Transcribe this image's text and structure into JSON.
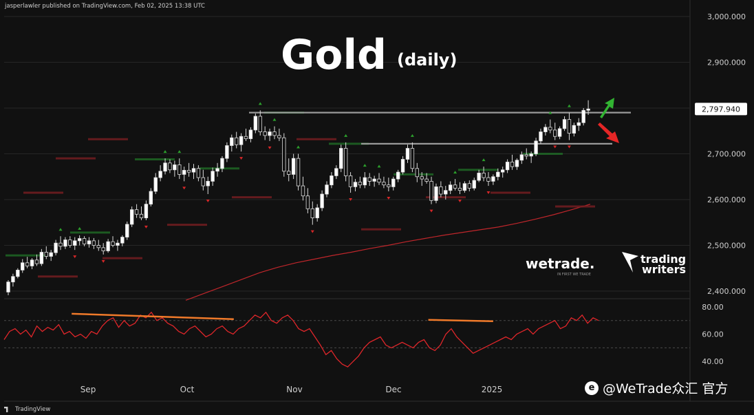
{
  "header": {
    "attribution": "jasperlawler published on TradingView.com, Feb 02, 2025 13:38 UTC"
  },
  "footer": {
    "tv_logo": "TradingView"
  },
  "watermark": {
    "icon": "weibo-icon",
    "text": "@WeTrade众汇 官方"
  },
  "logos": {
    "wetrade": "wetrade.",
    "wetrade_tagline": "IN FIRST WE TRADE",
    "trading_writers_line1": "trading",
    "trading_writers_line2": "writers"
  },
  "colors": {
    "background": "#111111",
    "up": "#ffffff",
    "down": "#ffffff",
    "level": "#9a9a9a",
    "sma": "#c0262b",
    "rsi": "#e0262a",
    "divergence": "#f07a2a",
    "arrow_up": "#32b432",
    "arrow_down": "#e52626",
    "pivot_high": "#2ca02c",
    "pivot_low": "#d62728",
    "current_price_bg": "#ffffff"
  },
  "chart_data": {
    "type": "candlestick",
    "title": "Gold",
    "subtitle": "(daily)",
    "price_axis": {
      "ticks": [
        "3,000.000",
        "2,900.000",
        "2,800.000",
        "2,700.000",
        "2,600.000",
        "2,500.000",
        "2,400.000"
      ],
      "ylim": [
        2385,
        3015
      ]
    },
    "current_price": {
      "value": 2797.94,
      "label": "2,797.940"
    },
    "x_axis": {
      "labels": [
        "Sep",
        "Oct",
        "Nov",
        "Dec",
        "2025"
      ],
      "label_positions": [
        20,
        46,
        74,
        100,
        125
      ]
    },
    "candles_ohlc": [
      [
        2398,
        2424,
        2391,
        2420
      ],
      [
        2420,
        2438,
        2410,
        2432
      ],
      [
        2432,
        2450,
        2428,
        2446
      ],
      [
        2446,
        2470,
        2440,
        2462
      ],
      [
        2462,
        2475,
        2450,
        2455
      ],
      [
        2455,
        2472,
        2448,
        2468
      ],
      [
        2468,
        2480,
        2455,
        2460
      ],
      [
        2460,
        2492,
        2455,
        2485
      ],
      [
        2485,
        2498,
        2470,
        2476
      ],
      [
        2476,
        2490,
        2466,
        2484
      ],
      [
        2484,
        2512,
        2478,
        2505
      ],
      [
        2505,
        2520,
        2490,
        2498
      ],
      [
        2498,
        2518,
        2492,
        2512
      ],
      [
        2512,
        2520,
        2495,
        2500
      ],
      [
        2500,
        2518,
        2490,
        2510
      ],
      [
        2510,
        2522,
        2500,
        2515
      ],
      [
        2515,
        2520,
        2498,
        2503
      ],
      [
        2503,
        2518,
        2495,
        2510
      ],
      [
        2510,
        2516,
        2492,
        2500
      ],
      [
        2500,
        2512,
        2488,
        2495
      ],
      [
        2495,
        2505,
        2480,
        2488
      ],
      [
        2488,
        2514,
        2484,
        2508
      ],
      [
        2508,
        2520,
        2496,
        2500
      ],
      [
        2500,
        2512,
        2488,
        2505
      ],
      [
        2505,
        2522,
        2498,
        2518
      ],
      [
        2518,
        2552,
        2512,
        2546
      ],
      [
        2546,
        2585,
        2540,
        2578
      ],
      [
        2578,
        2590,
        2560,
        2568
      ],
      [
        2568,
        2585,
        2555,
        2560
      ],
      [
        2560,
        2598,
        2555,
        2590
      ],
      [
        2590,
        2625,
        2585,
        2618
      ],
      [
        2618,
        2658,
        2612,
        2648
      ],
      [
        2648,
        2675,
        2640,
        2662
      ],
      [
        2662,
        2690,
        2655,
        2680
      ],
      [
        2680,
        2688,
        2658,
        2665
      ],
      [
        2665,
        2685,
        2650,
        2676
      ],
      [
        2676,
        2690,
        2645,
        2655
      ],
      [
        2655,
        2672,
        2640,
        2664
      ],
      [
        2664,
        2680,
        2650,
        2660
      ],
      [
        2660,
        2678,
        2645,
        2668
      ],
      [
        2668,
        2675,
        2640,
        2648
      ],
      [
        2648,
        2665,
        2620,
        2630
      ],
      [
        2630,
        2650,
        2612,
        2640
      ],
      [
        2640,
        2670,
        2630,
        2662
      ],
      [
        2662,
        2680,
        2650,
        2668
      ],
      [
        2668,
        2695,
        2660,
        2690
      ],
      [
        2690,
        2725,
        2682,
        2718
      ],
      [
        2718,
        2742,
        2705,
        2735
      ],
      [
        2735,
        2748,
        2712,
        2720
      ],
      [
        2720,
        2745,
        2705,
        2738
      ],
      [
        2738,
        2755,
        2728,
        2733
      ],
      [
        2733,
        2758,
        2725,
        2752
      ],
      [
        2752,
        2788,
        2745,
        2782
      ],
      [
        2782,
        2795,
        2740,
        2748
      ],
      [
        2748,
        2760,
        2730,
        2740
      ],
      [
        2740,
        2755,
        2728,
        2748
      ],
      [
        2748,
        2760,
        2732,
        2740
      ],
      [
        2740,
        2755,
        2728,
        2735
      ],
      [
        2735,
        2745,
        2650,
        2662
      ],
      [
        2662,
        2690,
        2640,
        2655
      ],
      [
        2655,
        2700,
        2645,
        2690
      ],
      [
        2690,
        2700,
        2620,
        2630
      ],
      [
        2630,
        2650,
        2598,
        2608
      ],
      [
        2608,
        2625,
        2570,
        2580
      ],
      [
        2580,
        2596,
        2545,
        2560
      ],
      [
        2560,
        2590,
        2552,
        2582
      ],
      [
        2582,
        2620,
        2575,
        2612
      ],
      [
        2612,
        2640,
        2605,
        2632
      ],
      [
        2632,
        2660,
        2625,
        2652
      ],
      [
        2652,
        2675,
        2645,
        2668
      ],
      [
        2668,
        2720,
        2660,
        2712
      ],
      [
        2712,
        2725,
        2640,
        2652
      ],
      [
        2652,
        2660,
        2615,
        2628
      ],
      [
        2628,
        2645,
        2618,
        2638
      ],
      [
        2638,
        2650,
        2625,
        2632
      ],
      [
        2632,
        2660,
        2625,
        2648
      ],
      [
        2648,
        2658,
        2630,
        2640
      ],
      [
        2640,
        2652,
        2628,
        2645
      ],
      [
        2645,
        2658,
        2632,
        2638
      ],
      [
        2638,
        2650,
        2625,
        2632
      ],
      [
        2632,
        2648,
        2618,
        2628
      ],
      [
        2628,
        2650,
        2620,
        2645
      ],
      [
        2645,
        2665,
        2638,
        2660
      ],
      [
        2660,
        2695,
        2655,
        2688
      ],
      [
        2688,
        2720,
        2680,
        2712
      ],
      [
        2712,
        2725,
        2660,
        2668
      ],
      [
        2668,
        2680,
        2638,
        2650
      ],
      [
        2650,
        2660,
        2630,
        2645
      ],
      [
        2645,
        2658,
        2635,
        2640
      ],
      [
        2640,
        2650,
        2590,
        2598
      ],
      [
        2598,
        2635,
        2592,
        2628
      ],
      [
        2628,
        2640,
        2605,
        2612
      ],
      [
        2612,
        2630,
        2600,
        2620
      ],
      [
        2620,
        2640,
        2612,
        2632
      ],
      [
        2632,
        2645,
        2620,
        2625
      ],
      [
        2625,
        2638,
        2612,
        2620
      ],
      [
        2620,
        2640,
        2615,
        2635
      ],
      [
        2635,
        2642,
        2618,
        2625
      ],
      [
        2625,
        2648,
        2620,
        2642
      ],
      [
        2642,
        2665,
        2638,
        2658
      ],
      [
        2658,
        2672,
        2640,
        2648
      ],
      [
        2648,
        2660,
        2630,
        2640
      ],
      [
        2640,
        2655,
        2632,
        2650
      ],
      [
        2650,
        2668,
        2642,
        2660
      ],
      [
        2660,
        2672,
        2648,
        2665
      ],
      [
        2665,
        2688,
        2658,
        2682
      ],
      [
        2682,
        2698,
        2665,
        2672
      ],
      [
        2672,
        2690,
        2665,
        2686
      ],
      [
        2686,
        2705,
        2678,
        2698
      ],
      [
        2698,
        2712,
        2688,
        2695
      ],
      [
        2695,
        2705,
        2680,
        2700
      ],
      [
        2700,
        2735,
        2695,
        2728
      ],
      [
        2728,
        2755,
        2722,
        2748
      ],
      [
        2748,
        2765,
        2740,
        2758
      ],
      [
        2758,
        2775,
        2745,
        2752
      ],
      [
        2752,
        2768,
        2730,
        2738
      ],
      [
        2738,
        2760,
        2732,
        2755
      ],
      [
        2755,
        2782,
        2750,
        2775
      ],
      [
        2775,
        2790,
        2730,
        2745
      ],
      [
        2745,
        2768,
        2738,
        2762
      ],
      [
        2762,
        2778,
        2750,
        2768
      ],
      [
        2768,
        2800,
        2762,
        2795
      ],
      [
        2795,
        2817,
        2785,
        2798
      ]
    ],
    "resistance_levels": [
      {
        "value": 2790,
        "label": ""
      },
      {
        "value": 2722,
        "label": ""
      }
    ],
    "sma": {
      "name": "",
      "values": [
        2380,
        2395,
        2410,
        2425,
        2440,
        2452,
        2462,
        2470,
        2478,
        2485,
        2493,
        2500,
        2508,
        2515,
        2522,
        2528,
        2534,
        2540,
        2548,
        2557,
        2567,
        2578,
        2590
      ]
    },
    "pivot_lines": [
      {
        "kind": "high",
        "value": 2478
      },
      {
        "kind": "low",
        "value": 2432
      },
      {
        "kind": "high",
        "value": 2528
      },
      {
        "kind": "low",
        "value": 2472
      },
      {
        "kind": "high",
        "value": 2688
      },
      {
        "kind": "low",
        "value": 2545
      },
      {
        "kind": "high",
        "value": 2668
      },
      {
        "kind": "low",
        "value": 2605
      },
      {
        "kind": "high",
        "value": 2790
      },
      {
        "kind": "low",
        "value": 2732
      },
      {
        "kind": "high",
        "value": 2722
      },
      {
        "kind": "low",
        "value": 2535
      },
      {
        "kind": "high",
        "value": 2655
      },
      {
        "kind": "low",
        "value": 2605
      },
      {
        "kind": "high",
        "value": 2665
      },
      {
        "kind": "low",
        "value": 2615
      },
      {
        "kind": "high",
        "value": 2700
      },
      {
        "kind": "low",
        "value": 2585
      },
      {
        "kind": "low",
        "value": 2615
      },
      {
        "kind": "low",
        "value": 2690
      },
      {
        "kind": "low",
        "value": 2732
      }
    ],
    "rsi": {
      "axis_ticks": [
        "80.00",
        "60.00",
        "40.00"
      ],
      "ylim": [
        30,
        85
      ],
      "levels": [
        70,
        50
      ],
      "values": [
        56,
        62,
        64,
        60,
        63,
        58,
        66,
        62,
        65,
        63,
        67,
        60,
        62,
        58,
        60,
        57,
        62,
        60,
        66,
        70,
        72,
        65,
        70,
        66,
        68,
        74,
        72,
        76,
        70,
        72,
        68,
        66,
        62,
        60,
        64,
        66,
        62,
        58,
        60,
        64,
        66,
        62,
        60,
        64,
        66,
        70,
        74,
        72,
        76,
        70,
        68,
        72,
        74,
        70,
        64,
        62,
        64,
        58,
        52,
        45,
        48,
        42,
        38,
        36,
        40,
        44,
        50,
        54,
        56,
        58,
        52,
        50,
        52,
        54,
        52,
        50,
        54,
        56,
        50,
        48,
        52,
        60,
        64,
        58,
        54,
        50,
        46,
        48,
        50,
        52,
        54,
        56,
        58,
        56,
        60,
        62,
        64,
        60,
        64,
        66,
        68,
        70,
        64,
        66,
        72,
        70,
        74,
        68,
        72,
        70
      ],
      "divergence_lines": [
        [
          2.5,
          75,
          8.5,
          71
        ],
        [
          15.7,
          70.5,
          18.1,
          69.5
        ]
      ]
    },
    "annotations": [
      {
        "type": "arrow-up"
      },
      {
        "type": "arrow-down"
      }
    ]
  }
}
